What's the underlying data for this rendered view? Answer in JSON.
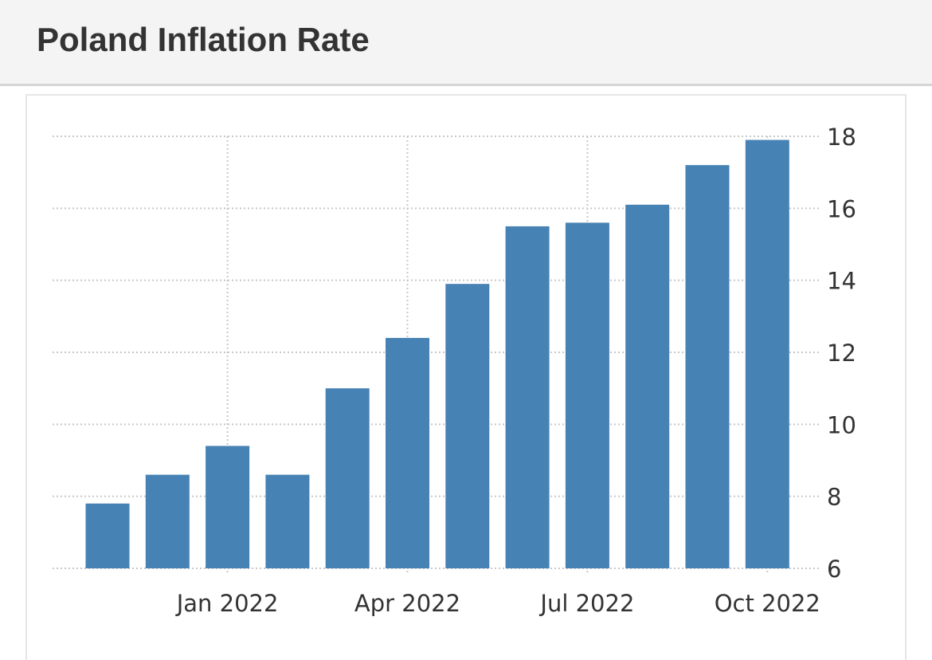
{
  "header": {
    "title": "Poland Inflation Rate"
  },
  "chart_data": {
    "type": "bar",
    "title": "",
    "xlabel": "",
    "ylabel": "",
    "color": "#4682b4",
    "grid": true,
    "y_axis_side": "right",
    "ylim": [
      6,
      18
    ],
    "yticks": [
      6,
      8,
      10,
      12,
      14,
      16,
      18
    ],
    "categories": [
      "Nov 2021",
      "Dec 2021",
      "Jan 2022",
      "Feb 2022",
      "Mar 2022",
      "Apr 2022",
      "May 2022",
      "Jun 2022",
      "Jul 2022",
      "Aug 2022",
      "Sep 2022",
      "Oct 2022"
    ],
    "values": [
      7.8,
      8.6,
      9.4,
      8.6,
      11.0,
      12.4,
      13.9,
      15.5,
      15.6,
      16.1,
      17.2,
      17.9
    ],
    "xtick_labels": [
      {
        "category": "Jan 2022",
        "label": "Jan 2022"
      },
      {
        "category": "Apr 2022",
        "label": "Apr 2022"
      },
      {
        "category": "Jul 2022",
        "label": "Jul 2022"
      },
      {
        "category": "Oct 2022",
        "label": "Oct 2022"
      }
    ]
  }
}
